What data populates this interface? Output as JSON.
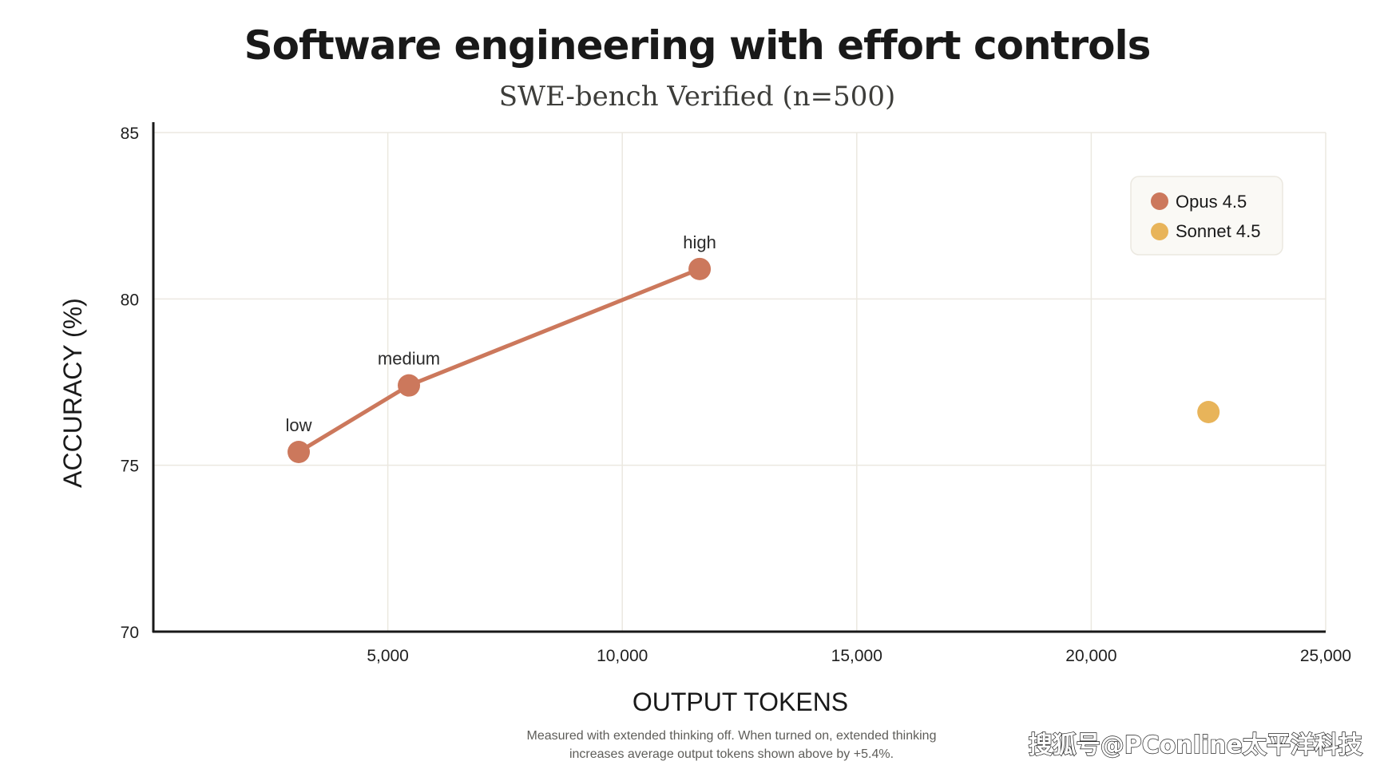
{
  "chart_data": {
    "type": "scatter",
    "title": "Software engineering with effort controls",
    "subtitle": "SWE-bench Verified (n=500)",
    "xlabel": "OUTPUT TOKENS",
    "ylabel": "ACCURACY (%)",
    "xlim": [
      0,
      25000
    ],
    "ylim": [
      70,
      85
    ],
    "xticks": [
      5000,
      10000,
      15000,
      20000,
      25000
    ],
    "xtick_labels": [
      "5,000",
      "10,000",
      "15,000",
      "20,000",
      "25,000"
    ],
    "yticks": [
      70,
      75,
      80,
      85
    ],
    "ytick_labels": [
      "70",
      "75",
      "80",
      "85"
    ],
    "grid": true,
    "legend_position": "top-right",
    "series": [
      {
        "name": "Opus 4.5",
        "color": "#cc785c",
        "connected": true,
        "points": [
          {
            "label": "low",
            "x": 3100,
            "y": 75.4
          },
          {
            "label": "medium",
            "x": 5450,
            "y": 77.4
          },
          {
            "label": "high",
            "x": 11650,
            "y": 80.9
          }
        ]
      },
      {
        "name": "Sonnet 4.5",
        "color": "#e8b45a",
        "connected": false,
        "points": [
          {
            "label": "",
            "x": 22500,
            "y": 76.6
          }
        ]
      }
    ],
    "footnote": [
      "Measured with extended thinking off. When turned on, extended thinking",
      "increases average output tokens shown above by +5.4%."
    ]
  },
  "watermark": "搜狐号@PConline太平洋科技"
}
